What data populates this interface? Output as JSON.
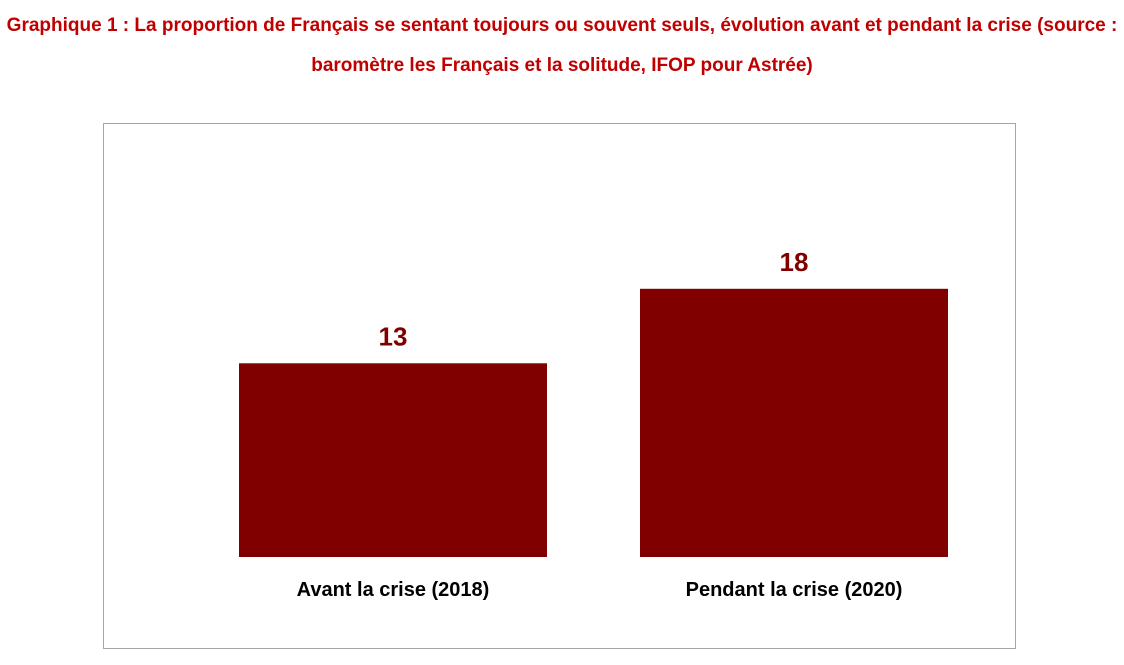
{
  "chart_data": {
    "type": "bar",
    "title": "Graphique 1 : La proportion de Français se sentant toujours ou souvent seuls, évolution avant et pendant la crise (source : baromètre les Français et la solitude, IFOP pour Astrée)",
    "categories": [
      "Avant la crise (2018)",
      "Pendant la crise (2020)"
    ],
    "values": [
      13,
      18
    ],
    "value_labels": [
      "13",
      "18"
    ],
    "xlabel": "",
    "ylabel": "",
    "ylim": [
      0,
      25
    ],
    "grid": false,
    "legend": "none",
    "bar_color": "#800000",
    "label_color": "#800000",
    "title_color": "#c00000"
  }
}
